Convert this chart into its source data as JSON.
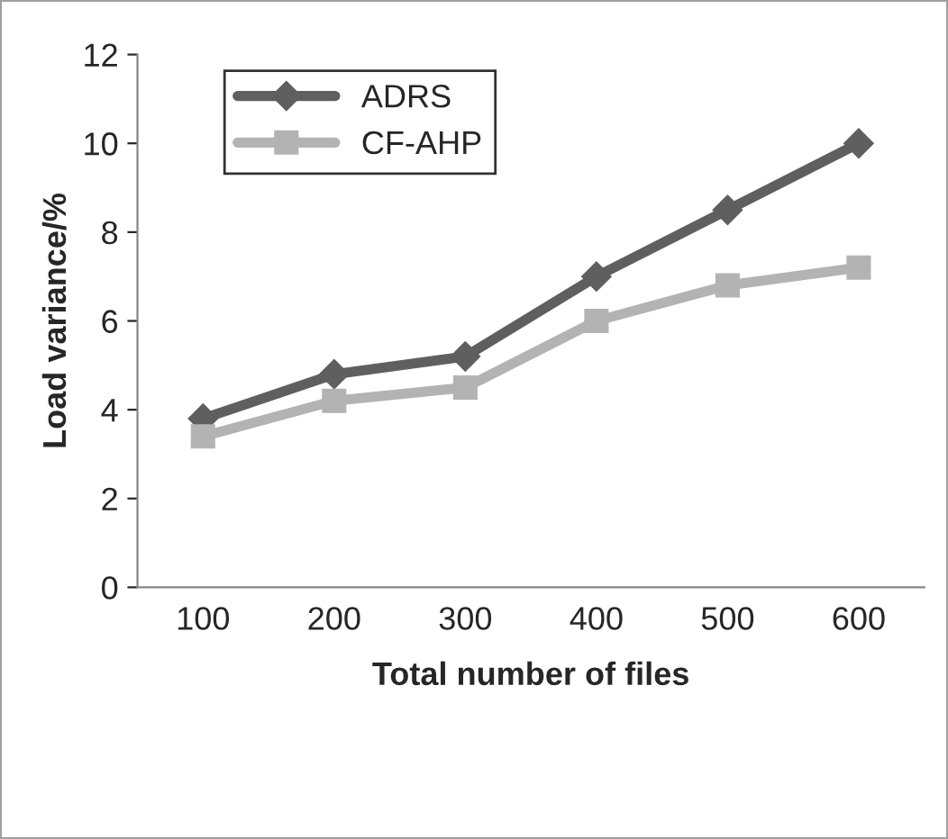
{
  "chart_data": {
    "type": "line",
    "xlabel": "Total number of files",
    "ylabel": "Load variance/%",
    "categories": [
      "100",
      "200",
      "300",
      "400",
      "500",
      "600"
    ],
    "series": [
      {
        "name": "ADRS",
        "color": "#5f5f5f",
        "marker": "diamond",
        "values": [
          3.8,
          4.8,
          5.2,
          7.0,
          8.5,
          10.0
        ]
      },
      {
        "name": "CF-AHP",
        "color": "#b3b3b3",
        "marker": "square",
        "values": [
          3.4,
          4.2,
          4.5,
          6.0,
          6.8,
          7.2
        ]
      }
    ],
    "ylim": [
      0,
      12
    ],
    "yticks": [
      0,
      2,
      4,
      6,
      8,
      10,
      12
    ],
    "grid": false,
    "legend": "top left",
    "line_style": "solid"
  }
}
